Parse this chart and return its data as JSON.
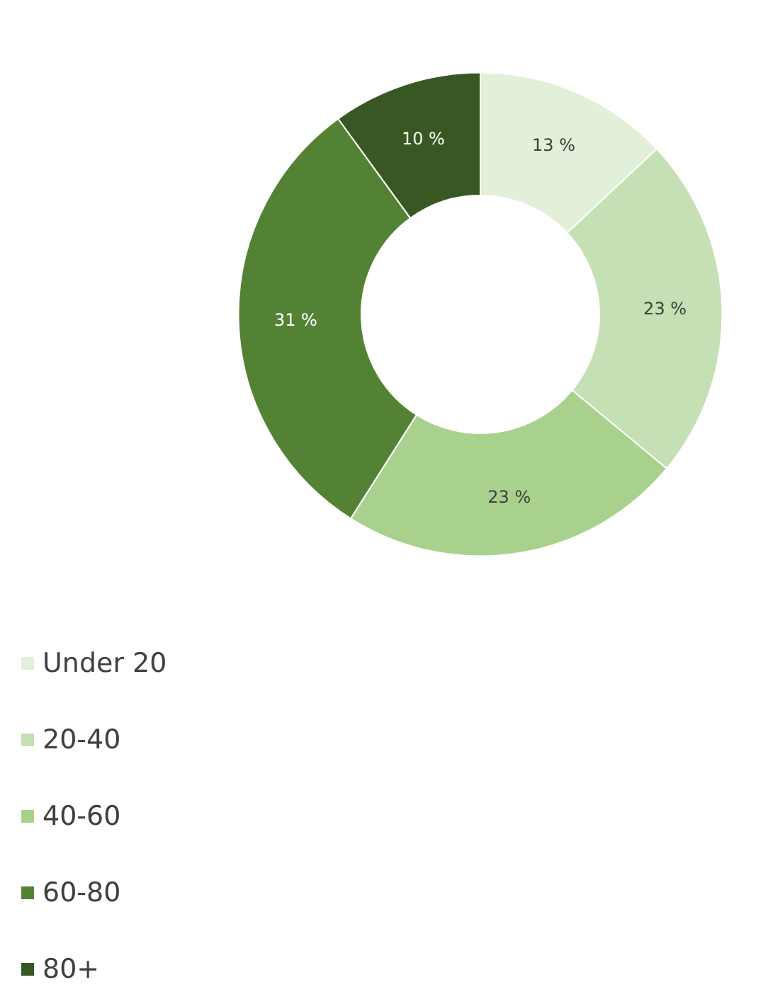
{
  "chart_data": {
    "type": "donut",
    "categories": [
      "Under 20",
      "20-40",
      "40-60",
      "60-80",
      "80+"
    ],
    "values": [
      13,
      23,
      23,
      31,
      10
    ],
    "colors": [
      "#e2efd9",
      "#c5e0b4",
      "#a9d18e",
      "#548235",
      "#385723"
    ],
    "value_labels": [
      "13 %",
      "23 %",
      "23 %",
      "31 %",
      "10 %"
    ],
    "legend": "bottom left"
  }
}
